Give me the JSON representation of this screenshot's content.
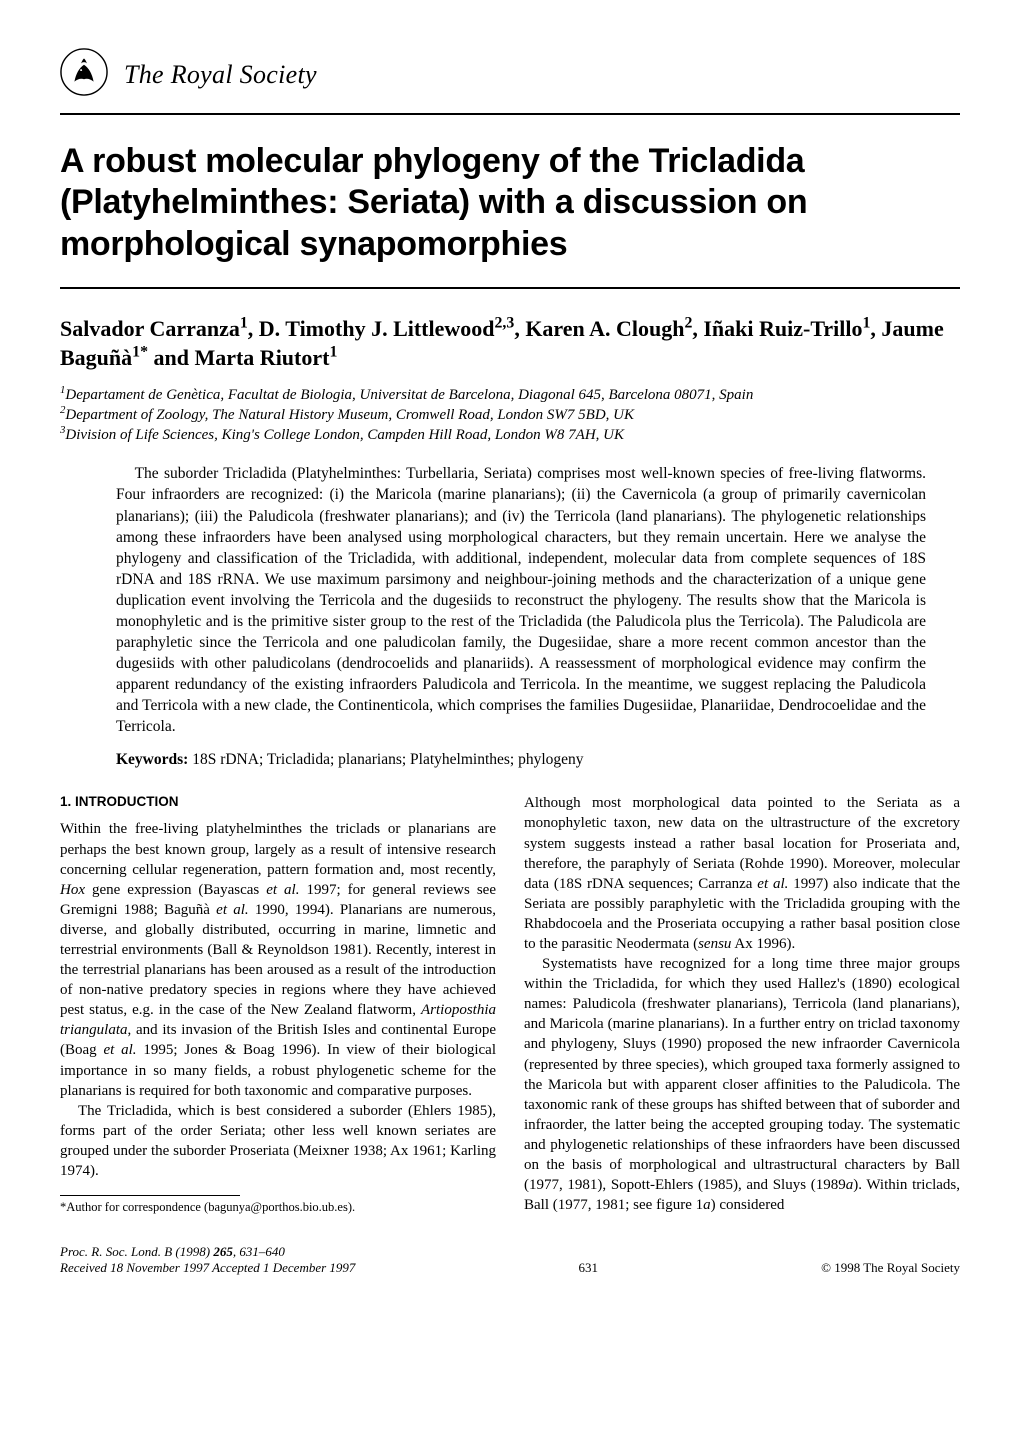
{
  "journal_name": "The Royal Society",
  "title": "A robust molecular phylogeny of the Tricladida (Platyhelminthes: Seriata) with a discussion on morphological synapomorphies",
  "authors_html": "Salvador Carranza<sup>1</sup>, D. Timothy J. Littlewood<sup>2,3</sup>, Karen A. Clough<sup>2</sup>, Iñaki Ruiz-Trillo<sup>1</sup>, Jaume Baguñà<sup>1*</sup> and Marta Riutort<sup>1</sup>",
  "affiliations": [
    "<sup>1</sup>Departament de Genètica, Facultat de Biologia, Universitat de Barcelona, Diagonal 645, Barcelona 08071, Spain",
    "<sup>2</sup>Department of Zoology, The Natural History Museum, Cromwell Road, London SW7 5BD, UK",
    "<sup>3</sup>Division of Life Sciences, King's College London, Campden Hill Road, London W8 7AH, UK"
  ],
  "abstract": "The suborder Tricladida (Platyhelminthes: Turbellaria, Seriata) comprises most well-known species of free-living flatworms. Four infraorders are recognized: (i) the Maricola (marine planarians); (ii) the Cavernicola (a group of primarily cavernicolan planarians); (iii) the Paludicola (freshwater planarians); and (iv) the Terricola (land planarians). The phylogenetic relationships among these infraorders have been analysed using morphological characters, but they remain uncertain. Here we analyse the phylogeny and classification of the Tricladida, with additional, independent, molecular data from complete sequences of 18S rDNA and 18S rRNA. We use maximum parsimony and neighbour-joining methods and the characterization of a unique gene duplication event involving the Terricola and the dugesiids to reconstruct the phylogeny. The results show that the Maricola is monophyletic and is the primitive sister group to the rest of the Tricladida (the Paludicola plus the Terricola). The Paludicola are paraphyletic since the Terricola and one paludicolan family, the Dugesiidae, share a more recent common ancestor than the dugesiids with other paludicolans (dendrocoelids and planariids). A reassessment of morphological evidence may confirm the apparent redundancy of the existing infraorders Paludicola and Terricola. In the meantime, we suggest replacing the Paludicola and Terricola with a new clade, the Continenticola, which comprises the families Dugesiidae, Planariidae, Dendrocoelidae and the Terricola.",
  "keywords_label": "Keywords:",
  "keywords": "18S rDNA; Tricladida; planarians; Platyhelminthes; phylogeny",
  "section1_head": "1. INTRODUCTION",
  "col_left_paras": [
    "Within the free-living platyhelminthes the triclads or planarians are perhaps the best known group, largely as a result of intensive research concerning cellular regeneration, pattern formation and, most recently, <i>Hox</i> gene expression (Bayascas <i>et al.</i> 1997; for general reviews see Gremigni 1988; Baguñà <i>et al.</i> 1990, 1994). Planarians are numerous, diverse, and globally distributed, occurring in marine, limnetic and terrestrial environments (Ball & Reynoldson 1981). Recently, interest in the terrestrial planarians has been aroused as a result of the introduction of non-native predatory species in regions where they have achieved pest status, e.g. in the case of the New Zealand flatworm, <i>Artioposthia triangulata</i>, and its invasion of the British Isles and continental Europe (Boag <i>et al.</i> 1995; Jones & Boag 1996). In view of their biological importance in so many fields, a robust phylogenetic scheme for the planarians is required for both taxonomic and comparative purposes.",
    "The Tricladida, which is best considered a suborder (Ehlers 1985), forms part of the order Seriata; other less well known seriates are grouped under the suborder Proseriata (Meixner 1938; Ax 1961; Karling 1974)."
  ],
  "col_right_paras": [
    "Although most morphological data pointed to the Seriata as a monophyletic taxon, new data on the ultrastructure of the excretory system suggests instead a rather basal location for Proseriata and, therefore, the paraphyly of Seriata (Rohde 1990). Moreover, molecular data (18S rDNA sequences; Carranza <i>et al.</i> 1997) also indicate that the Seriata are possibly paraphyletic with the Tricladida grouping with the Rhabdocoela and the Proseriata occupying a rather basal position close to the parasitic Neodermata (<i>sensu</i> Ax 1996).",
    "Systematists have recognized for a long time three major groups within the Tricladida, for which they used Hallez's (1890) ecological names: Paludicola (freshwater planarians), Terricola (land planarians), and Maricola (marine planarians). In a further entry on triclad taxonomy and phylogeny, Sluys (1990) proposed the new infraorder Cavernicola (represented by three species), which grouped taxa formerly assigned to the Maricola but with apparent closer affinities to the Paludicola. The taxonomic rank of these groups has shifted between that of suborder and infraorder, the latter being the accepted grouping today. The systematic and phylogenetic relationships of these infraorders have been discussed on the basis of morphological and ultrastructural characters by Ball (1977, 1981), Sopott-Ehlers (1985), and Sluys (1989<i>a</i>). Within triclads, Ball (1977, 1981; see figure 1<i>a</i>) considered"
  ],
  "footnote": "*Author for correspondence (bagunya@porthos.bio.ub.es).",
  "footer": {
    "citation": "<i>Proc. R. Soc. Lond.</i> B (1998) <b>265</b>, 631–640",
    "received": "<i>Received</i> 18 November 1997   <i>Accepted</i> 1 December 1997",
    "page_no": "631",
    "copyright": "© 1998 The Royal Society"
  },
  "colors": {
    "text": "#000000",
    "background": "#ffffff",
    "rule": "#000000"
  }
}
